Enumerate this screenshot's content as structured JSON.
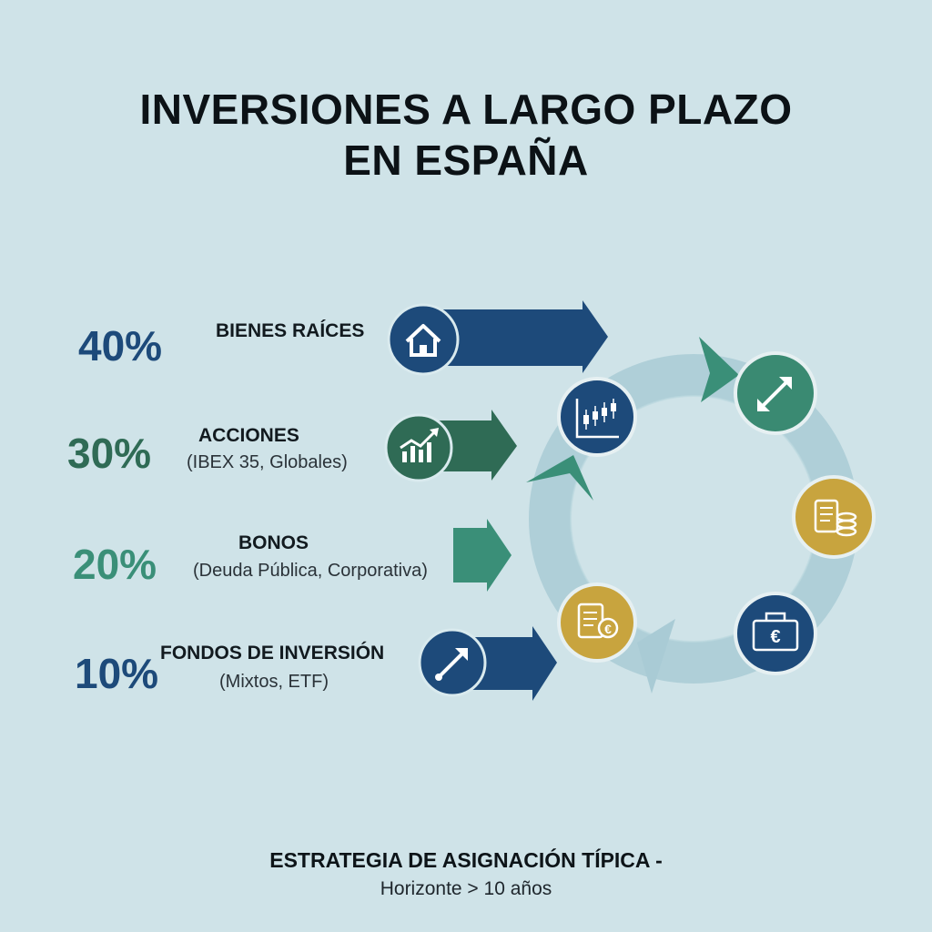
{
  "title": {
    "line1": "INVERSIONES A LARGO PLAZO",
    "line2": "EN ESPAÑA"
  },
  "allocations": [
    {
      "percent": "40%",
      "value": 40,
      "label": "BIENES RAÍCES",
      "sublabel": "",
      "color": "#1d4a7a",
      "icon": "house-icon"
    },
    {
      "percent": "30%",
      "value": 30,
      "label": "ACCIONES",
      "sublabel": "(IBEX 35, Globales)",
      "color": "#2f6b55",
      "icon": "growth-chart-icon"
    },
    {
      "percent": "20%",
      "value": 20,
      "label": "BONOS",
      "sublabel": "(Deuda Pública, Corporativa)",
      "color": "#3a8f78",
      "icon": ""
    },
    {
      "percent": "10%",
      "value": 10,
      "label": "FONDOS DE INVERSIÓN",
      "sublabel": "(Mixtos, ETF)",
      "color": "#1d4a7a",
      "icon": "rising-arrow-icon"
    }
  ],
  "cycle_icons": [
    {
      "icon": "candlestick-chart-icon",
      "color": "#1d4a7a"
    },
    {
      "icon": "diagonal-arrow-icon",
      "color": "#3a8a72"
    },
    {
      "icon": "scroll-coins-icon",
      "color": "#c8a43e"
    },
    {
      "icon": "briefcase-euro-icon",
      "color": "#1d4a7a"
    },
    {
      "icon": "document-euro-icon",
      "color": "#c8a43e"
    }
  ],
  "colors": {
    "background": "#cfe3e8",
    "navy": "#1d4a7a",
    "dark_green": "#2f6b55",
    "teal_green": "#3a8f78",
    "gold": "#c8a43e",
    "ring": "#a9cbd5"
  },
  "footer": {
    "main": "ESTRATEGIA DE ASIGNACIÓN TÍPICA -",
    "sub": "Horizonte > 10 años"
  }
}
